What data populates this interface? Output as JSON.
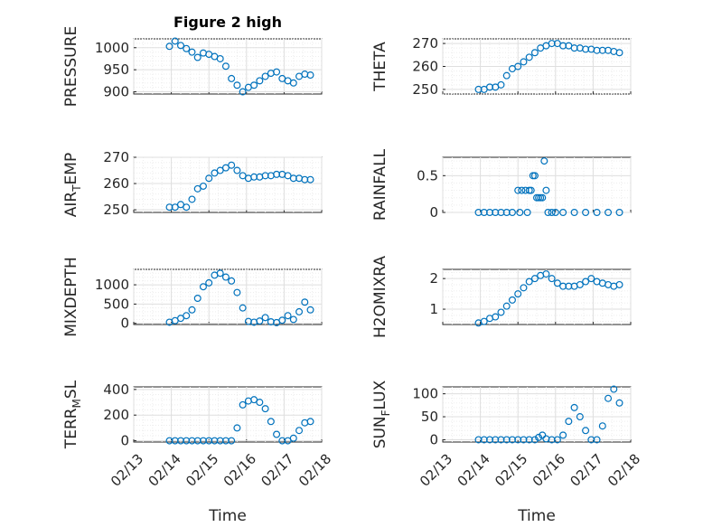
{
  "figure": {
    "title": "Figure 2 high",
    "xlabel": "Time"
  },
  "colors": {
    "marker": "#0072bd"
  },
  "chart_data": [
    {
      "type": "scatter",
      "ylabel": "PRESSURE",
      "ylim": [
        895,
        1020
      ],
      "yticks": [
        900,
        950,
        1000
      ],
      "xlim": [
        0,
        5
      ],
      "xticklabels": [],
      "grid": true,
      "x": [
        0.95,
        1.1,
        1.25,
        1.4,
        1.55,
        1.7,
        1.85,
        2.0,
        2.15,
        2.3,
        2.45,
        2.6,
        2.75,
        2.9,
        3.05,
        3.2,
        3.35,
        3.5,
        3.65,
        3.8,
        3.95,
        4.1,
        4.25,
        4.4,
        4.55,
        4.7
      ],
      "y": [
        1003,
        1015,
        1005,
        998,
        990,
        978,
        988,
        985,
        980,
        975,
        958,
        930,
        915,
        900,
        910,
        915,
        925,
        935,
        942,
        945,
        930,
        925,
        920,
        935,
        940,
        938
      ]
    },
    {
      "type": "scatter",
      "ylabel": "THETA",
      "ylim": [
        248,
        272
      ],
      "yticks": [
        250,
        260,
        270
      ],
      "xlim": [
        0,
        5
      ],
      "xticklabels": [],
      "grid": true,
      "x": [
        0.95,
        1.1,
        1.25,
        1.4,
        1.55,
        1.7,
        1.85,
        2.0,
        2.15,
        2.3,
        2.45,
        2.6,
        2.75,
        2.9,
        3.05,
        3.2,
        3.35,
        3.5,
        3.65,
        3.8,
        3.95,
        4.1,
        4.25,
        4.4,
        4.55,
        4.7
      ],
      "y": [
        250,
        250,
        251,
        251,
        252,
        256,
        259,
        260,
        262,
        264,
        266,
        268,
        269,
        270,
        270,
        269,
        269,
        268,
        268,
        267.5,
        267.5,
        267,
        267,
        267,
        266.5,
        266
      ]
    },
    {
      "type": "scatter",
      "ylabel": "AIR_TEMP",
      "ylim": [
        249,
        270
      ],
      "yticks": [
        250,
        260,
        270
      ],
      "xlim": [
        0,
        5
      ],
      "xticklabels": [],
      "grid": true,
      "x": [
        0.95,
        1.1,
        1.25,
        1.4,
        1.55,
        1.7,
        1.85,
        2.0,
        2.15,
        2.3,
        2.45,
        2.6,
        2.75,
        2.9,
        3.05,
        3.2,
        3.35,
        3.5,
        3.65,
        3.8,
        3.95,
        4.1,
        4.25,
        4.4,
        4.55,
        4.7
      ],
      "y": [
        251,
        251,
        252,
        251,
        254,
        258,
        259,
        262,
        264,
        265,
        266,
        267,
        265,
        263,
        262,
        262.5,
        262.5,
        263,
        263,
        263.5,
        263.5,
        263,
        262,
        262,
        261.5,
        261.5
      ]
    },
    {
      "type": "scatter",
      "ylabel": "RAINFALL",
      "ylim": [
        0,
        0.75
      ],
      "yticks": [
        0,
        0.5
      ],
      "xlim": [
        0,
        5
      ],
      "xticklabels": [],
      "grid": true,
      "x": [
        0.95,
        1.1,
        1.25,
        1.4,
        1.55,
        1.7,
        1.85,
        2.0,
        2.05,
        2.1,
        2.2,
        2.25,
        2.3,
        2.35,
        2.4,
        2.45,
        2.5,
        2.55,
        2.6,
        2.65,
        2.7,
        2.75,
        2.8,
        2.9,
        3.0,
        3.2,
        3.5,
        3.8,
        4.1,
        4.4,
        4.7
      ],
      "y": [
        0,
        0,
        0,
        0,
        0,
        0,
        0,
        0.3,
        0,
        0.3,
        0.3,
        0,
        0.3,
        0.3,
        0.5,
        0.5,
        0.2,
        0.2,
        0.2,
        0.2,
        0.7,
        0.3,
        0,
        0,
        0,
        0,
        0,
        0,
        0,
        0,
        0
      ]
    },
    {
      "type": "scatter",
      "ylabel": "MIXDEPTH",
      "ylim": [
        -30,
        1400
      ],
      "yticks": [
        0,
        500,
        1000
      ],
      "xlim": [
        0,
        5
      ],
      "xticklabels": [],
      "grid": true,
      "x": [
        0.95,
        1.1,
        1.25,
        1.4,
        1.55,
        1.7,
        1.85,
        2.0,
        2.15,
        2.3,
        2.45,
        2.6,
        2.75,
        2.9,
        3.05,
        3.2,
        3.35,
        3.5,
        3.65,
        3.8,
        3.95,
        4.1,
        4.25,
        4.4,
        4.55,
        4.7
      ],
      "y": [
        30,
        70,
        130,
        200,
        350,
        650,
        950,
        1050,
        1250,
        1300,
        1200,
        1100,
        800,
        400,
        50,
        30,
        60,
        150,
        40,
        20,
        80,
        200,
        100,
        300,
        550,
        350
      ]
    },
    {
      "type": "scatter",
      "ylabel": "H2OMIXRA",
      "ylim": [
        0.5,
        2.3
      ],
      "yticks": [
        1,
        2
      ],
      "xlim": [
        0,
        5
      ],
      "xticklabels": [],
      "grid": true,
      "x": [
        0.95,
        1.1,
        1.25,
        1.4,
        1.55,
        1.7,
        1.85,
        2.0,
        2.15,
        2.3,
        2.45,
        2.6,
        2.75,
        2.9,
        3.05,
        3.2,
        3.35,
        3.5,
        3.65,
        3.8,
        3.95,
        4.1,
        4.25,
        4.4,
        4.55,
        4.7
      ],
      "y": [
        0.55,
        0.6,
        0.7,
        0.75,
        0.9,
        1.1,
        1.3,
        1.5,
        1.7,
        1.9,
        2.0,
        2.1,
        2.15,
        2.0,
        1.85,
        1.75,
        1.75,
        1.75,
        1.8,
        1.9,
        2.0,
        1.9,
        1.85,
        1.8,
        1.75,
        1.8
      ]
    },
    {
      "type": "scatter",
      "ylabel": "TERR_MSL",
      "ylim": [
        -10,
        420
      ],
      "yticks": [
        0,
        200,
        400
      ],
      "xlim": [
        0,
        5
      ],
      "xticklabels": [
        "02/13",
        "02/14",
        "02/15",
        "02/16",
        "02/17",
        "02/18"
      ],
      "grid": true,
      "x": [
        0.95,
        1.1,
        1.25,
        1.4,
        1.55,
        1.7,
        1.85,
        2.0,
        2.15,
        2.3,
        2.45,
        2.6,
        2.75,
        2.9,
        3.05,
        3.2,
        3.35,
        3.5,
        3.65,
        3.8,
        3.95,
        4.1,
        4.25,
        4.4,
        4.55,
        4.7
      ],
      "y": [
        0,
        0,
        0,
        0,
        0,
        0,
        0,
        0,
        0,
        0,
        0,
        0,
        100,
        280,
        310,
        320,
        300,
        250,
        150,
        50,
        0,
        0,
        20,
        80,
        140,
        150
      ]
    },
    {
      "type": "scatter",
      "ylabel": "SUN_FLUX",
      "ylim": [
        -5,
        115
      ],
      "yticks": [
        0,
        50,
        100
      ],
      "xlim": [
        0,
        5
      ],
      "xticklabels": [
        "02/13",
        "02/14",
        "02/15",
        "02/16",
        "02/17",
        "02/18"
      ],
      "grid": true,
      "x": [
        0.95,
        1.1,
        1.25,
        1.4,
        1.55,
        1.7,
        1.85,
        2.0,
        2.15,
        2.3,
        2.45,
        2.55,
        2.65,
        2.75,
        2.9,
        3.05,
        3.2,
        3.35,
        3.5,
        3.65,
        3.8,
        3.95,
        4.1,
        4.25,
        4.4,
        4.55,
        4.7
      ],
      "y": [
        0,
        0,
        0,
        0,
        0,
        0,
        0,
        0,
        0,
        0,
        0,
        5,
        10,
        2,
        0,
        0,
        10,
        40,
        70,
        50,
        20,
        0,
        0,
        30,
        90,
        110,
        80
      ]
    }
  ]
}
